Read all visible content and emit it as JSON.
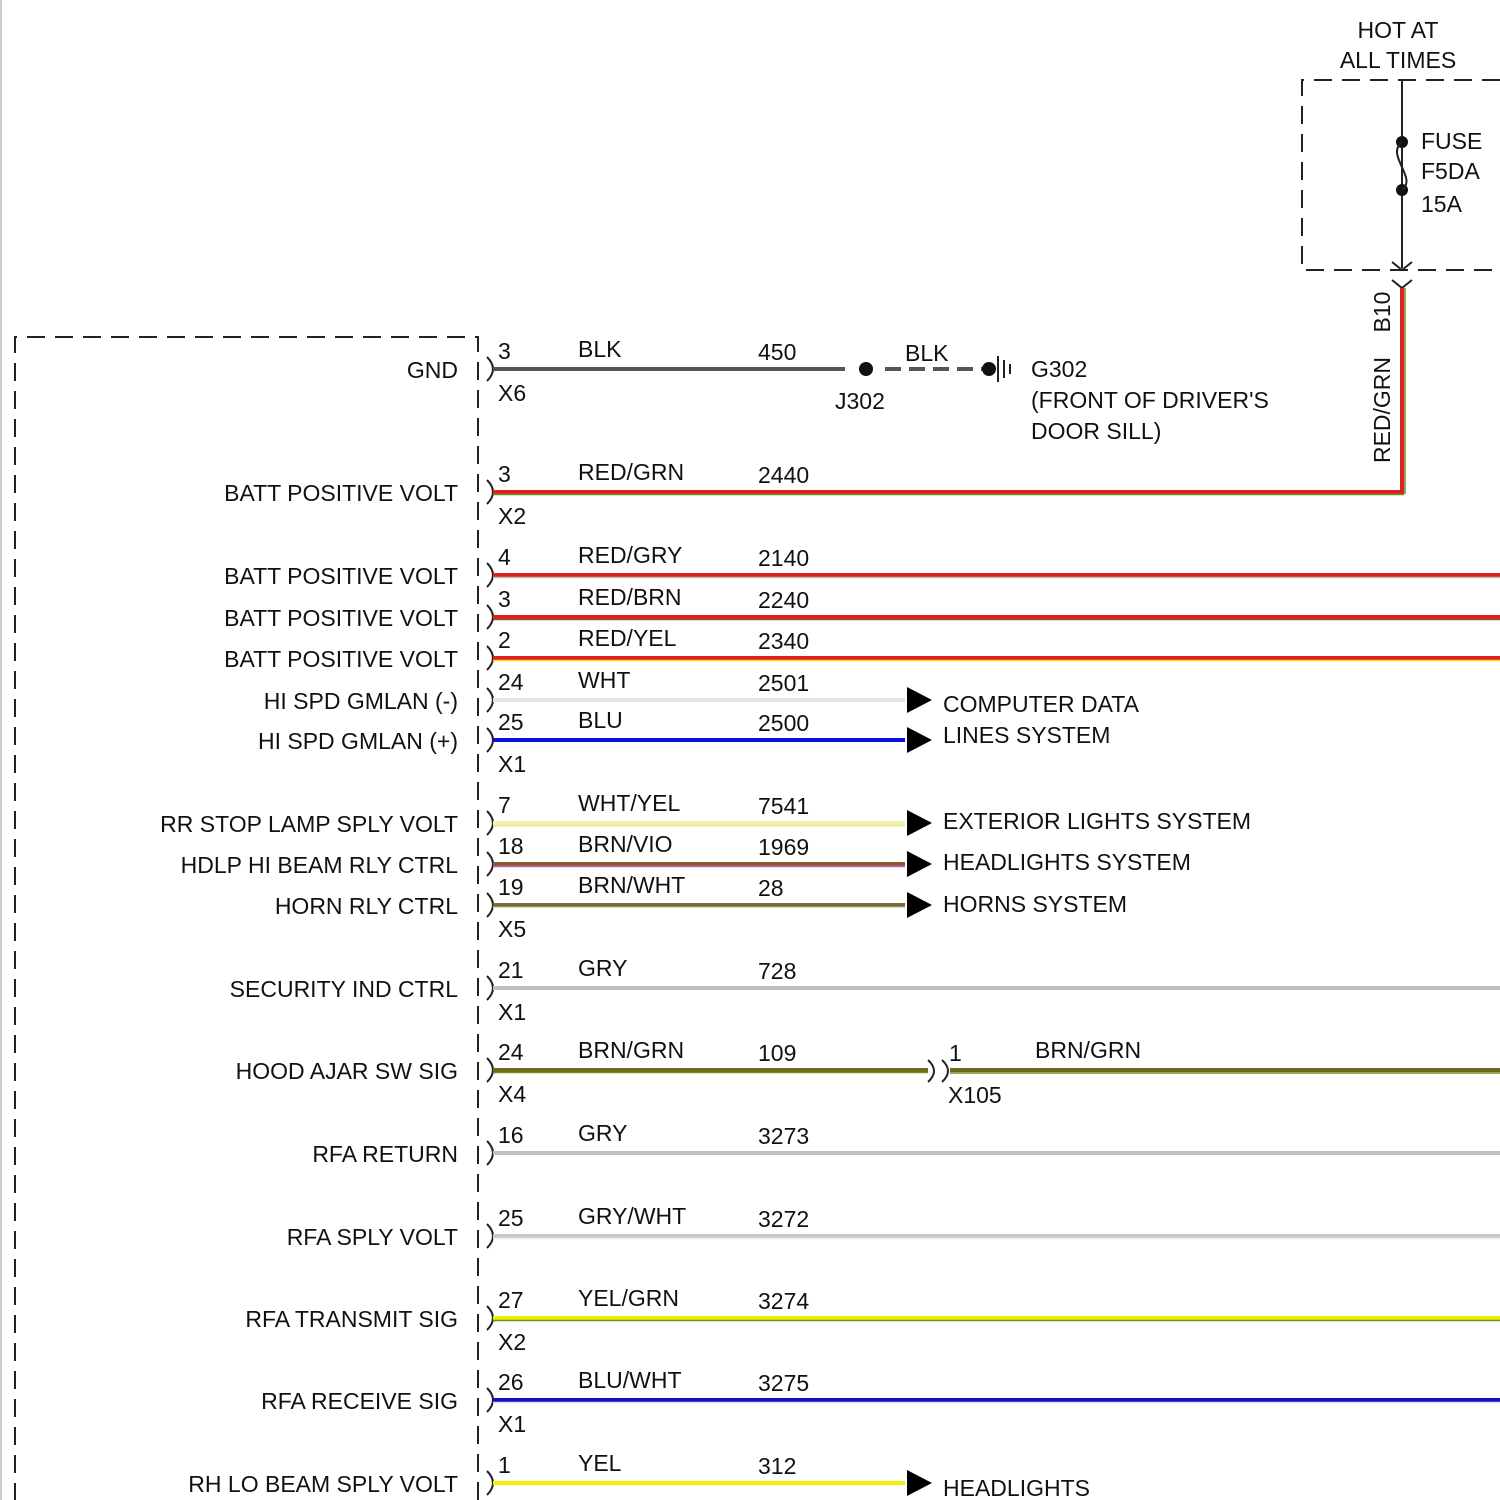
{
  "fuse_box": {
    "hot_lines": [
      "HOT AT",
      "ALL TIMES"
    ],
    "fuse_lines": [
      "FUSE",
      "F5DA",
      "15A"
    ],
    "pin": "B10",
    "wire_color": "RED/GRN"
  },
  "ground": {
    "splice": "J302",
    "wire_color": "BLK",
    "ground_lines": [
      "G302",
      "(FRONT OF DRIVER'S",
      "DOOR SILL)"
    ]
  },
  "circuits": [
    {
      "label": "GND",
      "pin": "3",
      "color": "BLK",
      "circuit": "450",
      "connector": "X6",
      "stroke": "#555555",
      "stripe": "#555555"
    },
    {
      "label": "BATT POSITIVE VOLT",
      "pin": "3",
      "color": "RED/GRN",
      "circuit": "2440",
      "connector": "X2",
      "stroke": "#e02020",
      "stripe": "#6b8e23"
    },
    {
      "label": "BATT POSITIVE VOLT",
      "pin": "4",
      "color": "RED/GRY",
      "circuit": "2140",
      "stroke": "#e02020",
      "stripe": "#bbbbbb"
    },
    {
      "label": "BATT POSITIVE VOLT",
      "pin": "3",
      "color": "RED/BRN",
      "circuit": "2240",
      "stroke": "#e02020",
      "stripe": "#8b5a2b"
    },
    {
      "label": "BATT POSITIVE VOLT",
      "pin": "2",
      "color": "RED/YEL",
      "circuit": "2340",
      "stroke": "#e02020",
      "stripe": "#f0e000"
    },
    {
      "label": "HI SPD GMLAN (-)",
      "pin": "24",
      "color": "WHT",
      "circuit": "2501",
      "stroke": "#e6e6e6",
      "stripe": "#e6e6e6"
    },
    {
      "label": "HI SPD GMLAN (+)",
      "pin": "25",
      "color": "BLU",
      "circuit": "2500",
      "connector": "X1",
      "stroke": "#1010e0",
      "stripe": "#1010e0"
    },
    {
      "label": "RR STOP LAMP SPLY VOLT",
      "pin": "7",
      "color": "WHT/YEL",
      "circuit": "7541",
      "stroke": "#f0f0c0",
      "stripe": "#e8e860"
    },
    {
      "label": "HDLP HI BEAM RLY CTRL",
      "pin": "18",
      "color": "BRN/VIO",
      "circuit": "1969",
      "stroke": "#8b5a2b",
      "stripe": "#c060c0"
    },
    {
      "label": "HORN RLY CTRL",
      "pin": "19",
      "color": "BRN/WHT",
      "circuit": "28",
      "connector": "X5",
      "stroke": "#7a6a30",
      "stripe": "#dddddd"
    },
    {
      "label": "SECURITY IND CTRL",
      "pin": "21",
      "color": "GRY",
      "circuit": "728",
      "connector": "X1",
      "stroke": "#c0c0c0",
      "stripe": "#c0c0c0"
    },
    {
      "label": "HOOD AJAR SW SIG",
      "pin": "24",
      "color": "BRN/GRN",
      "circuit": "109",
      "connector": "X4",
      "stroke": "#6b6a20",
      "stripe": "#6b8e23"
    },
    {
      "label": "RFA RETURN",
      "pin": "16",
      "color": "GRY",
      "circuit": "3273",
      "stroke": "#c0c0c0",
      "stripe": "#c0c0c0"
    },
    {
      "label": "RFA SPLY VOLT",
      "pin": "25",
      "color": "GRY/WHT",
      "circuit": "3272",
      "stroke": "#c8c8c8",
      "stripe": "#eeeeee"
    },
    {
      "label": "RFA TRANSMIT SIG",
      "pin": "27",
      "color": "YEL/GRN",
      "circuit": "3274",
      "connector": "X2",
      "stroke": "#e8f000",
      "stripe": "#6b8e23"
    },
    {
      "label": "RFA RECEIVE SIG",
      "pin": "26",
      "color": "BLU/WHT",
      "circuit": "3275",
      "connector": "X1",
      "stroke": "#1010c0",
      "stripe": "#dddddd"
    },
    {
      "label": "RH LO BEAM SPLY VOLT",
      "pin": "1",
      "color": "YEL",
      "circuit": "312",
      "stroke": "#f5f000",
      "stripe": "#f5f000"
    }
  ],
  "destinations": [
    {
      "lines": [
        "COMPUTER DATA",
        "LINES SYSTEM"
      ]
    },
    {
      "lines": [
        "EXTERIOR LIGHTS SYSTEM"
      ]
    },
    {
      "lines": [
        "HEADLIGHTS SYSTEM"
      ]
    },
    {
      "lines": [
        "HORNS SYSTEM"
      ]
    },
    {
      "lines": [
        "HEADLIGHTS"
      ]
    }
  ],
  "hood_connector": {
    "pin": "1",
    "connector": "X105",
    "color": "BRN/GRN"
  }
}
